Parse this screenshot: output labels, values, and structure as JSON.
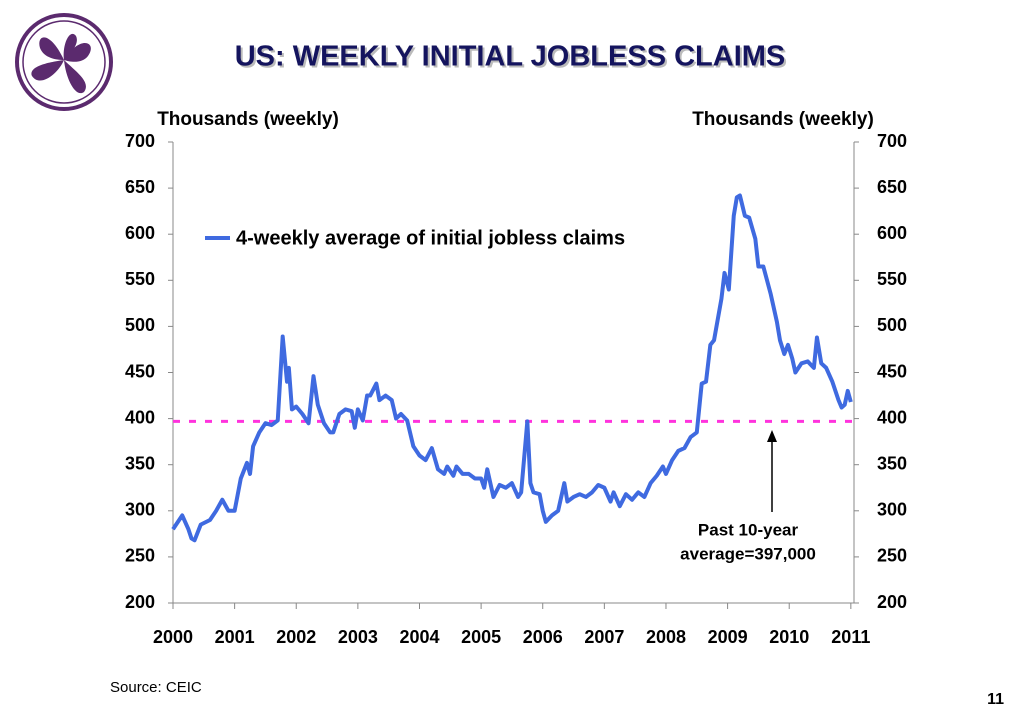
{
  "chart_data": {
    "type": "line",
    "title": "US: WEEKLY INITIAL JOBLESS CLAIMS",
    "y_label": "Thousands (weekly)",
    "y2_label": "Thousands (weekly)",
    "source": "Source: CEIC",
    "page_number": "11",
    "legend": "upper left",
    "xlim": [
      2000,
      2011.1
    ],
    "xticks": [
      2000,
      2001,
      2002,
      2003,
      2004,
      2005,
      2006,
      2007,
      2008,
      2009,
      2010,
      2011
    ],
    "ylim": [
      200,
      700
    ],
    "yticks": [
      200,
      250,
      300,
      350,
      400,
      450,
      500,
      550,
      600,
      650,
      700
    ],
    "y2lim": [
      200,
      700
    ],
    "y2ticks": [
      200,
      250,
      300,
      350,
      400,
      450,
      500,
      550,
      600,
      650,
      700
    ],
    "reference_line": {
      "value": 397,
      "color": "#ff33dd"
    },
    "annotation": [
      "Past 10-year",
      "average=397,000"
    ],
    "series": [
      {
        "name": "4-weekly average of initial jobless claims",
        "color": "#3f6ae0",
        "x": [
          2000.0,
          2000.1,
          2000.15,
          2000.25,
          2000.3,
          2000.35,
          2000.45,
          2000.6,
          2000.7,
          2000.8,
          2000.9,
          2001.0,
          2001.1,
          2001.2,
          2001.25,
          2001.3,
          2001.4,
          2001.5,
          2001.6,
          2001.7,
          2001.78,
          2001.85,
          2001.88,
          2001.93,
          2002.0,
          2002.1,
          2002.2,
          2002.28,
          2002.35,
          2002.45,
          2002.55,
          2002.6,
          2002.7,
          2002.8,
          2002.9,
          2002.95,
          2003.0,
          2003.08,
          2003.15,
          2003.2,
          2003.3,
          2003.35,
          2003.45,
          2003.55,
          2003.62,
          2003.7,
          2003.8,
          2003.9,
          2004.0,
          2004.1,
          2004.2,
          2004.3,
          2004.4,
          2004.45,
          2004.55,
          2004.6,
          2004.7,
          2004.8,
          2004.9,
          2005.0,
          2005.05,
          2005.1,
          2005.2,
          2005.3,
          2005.4,
          2005.5,
          2005.6,
          2005.65,
          2005.75,
          2005.8,
          2005.85,
          2005.95,
          2006.0,
          2006.05,
          2006.15,
          2006.25,
          2006.35,
          2006.4,
          2006.5,
          2006.6,
          2006.7,
          2006.8,
          2006.9,
          2007.0,
          2007.1,
          2007.15,
          2007.25,
          2007.35,
          2007.45,
          2007.55,
          2007.65,
          2007.75,
          2007.85,
          2007.95,
          2008.0,
          2008.1,
          2008.2,
          2008.3,
          2008.4,
          2008.5,
          2008.58,
          2008.65,
          2008.72,
          2008.78,
          2008.9,
          2008.95,
          2009.02,
          2009.1,
          2009.15,
          2009.2,
          2009.28,
          2009.35,
          2009.45,
          2009.5,
          2009.58,
          2009.7,
          2009.8,
          2009.85,
          2009.92,
          2009.98,
          2010.05,
          2010.1,
          2010.2,
          2010.3,
          2010.4,
          2010.45,
          2010.52,
          2010.6,
          2010.7,
          2010.8,
          2010.85,
          2010.9,
          2010.95,
          2011.0
        ],
        "values": [
          280,
          290,
          295,
          280,
          270,
          268,
          285,
          290,
          300,
          312,
          300,
          300,
          335,
          352,
          340,
          370,
          385,
          395,
          393,
          398,
          489,
          440,
          455,
          410,
          413,
          405,
          395,
          446,
          415,
          395,
          385,
          385,
          405,
          410,
          408,
          390,
          410,
          398,
          425,
          425,
          438,
          420,
          425,
          420,
          400,
          405,
          398,
          370,
          360,
          355,
          368,
          345,
          340,
          348,
          338,
          348,
          340,
          340,
          335,
          335,
          325,
          345,
          315,
          328,
          325,
          330,
          315,
          320,
          397,
          330,
          320,
          318,
          300,
          288,
          295,
          300,
          330,
          310,
          315,
          318,
          315,
          320,
          328,
          325,
          310,
          320,
          305,
          318,
          312,
          320,
          315,
          330,
          338,
          348,
          340,
          355,
          365,
          368,
          380,
          385,
          438,
          440,
          480,
          485,
          530,
          558,
          540,
          620,
          640,
          642,
          620,
          618,
          595,
          565,
          565,
          535,
          505,
          485,
          470,
          480,
          465,
          450,
          460,
          462,
          455,
          488,
          460,
          455,
          440,
          420,
          412,
          415,
          430,
          418
        ]
      }
    ]
  }
}
